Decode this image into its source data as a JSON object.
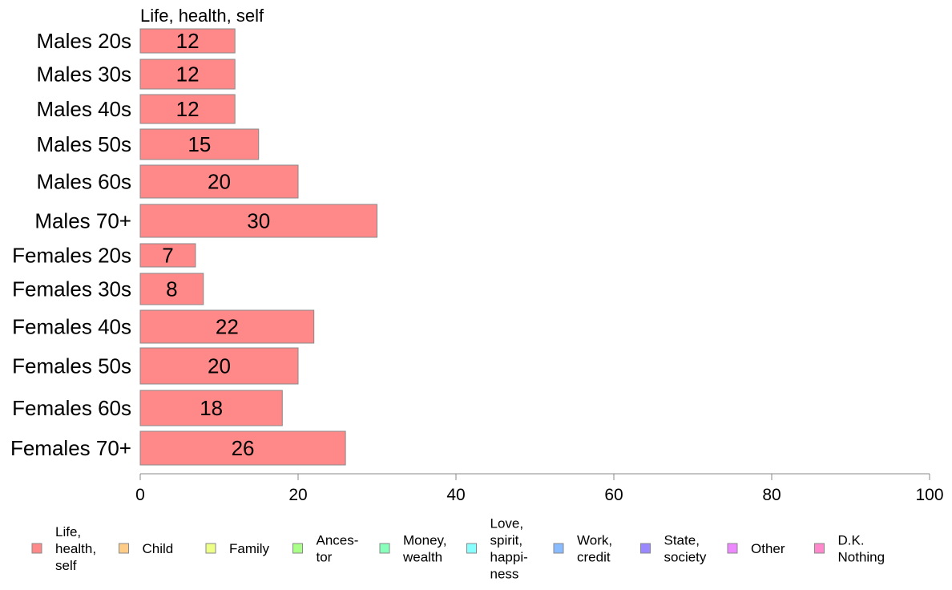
{
  "chart_data": {
    "type": "bar",
    "orientation": "horizontal",
    "title": "",
    "column_label": "Life, health, self",
    "categories": [
      "Males 20s",
      "Males 30s",
      "Males 40s",
      "Males 50s",
      "Males 60s",
      "Males 70+",
      "Females 20s",
      "Females 30s",
      "Females 40s",
      "Females 50s",
      "Females 60s",
      "Females 70+"
    ],
    "series": [
      {
        "name": "Life, health, self",
        "values": [
          12,
          12,
          12,
          15,
          20,
          30,
          7,
          8,
          22,
          20,
          18,
          26
        ],
        "value_labels": [
          "12",
          "12",
          "12",
          "15",
          "20",
          "30",
          "7",
          "8",
          "22",
          "20",
          "18",
          "26"
        ]
      }
    ],
    "xlim": [
      0,
      100
    ],
    "xticks": [
      0,
      20,
      40,
      60,
      80,
      100
    ],
    "xtick_labels": [
      "0",
      "20",
      "40",
      "60",
      "80",
      "100"
    ],
    "grid": false,
    "legend_placement": "bottom",
    "legend": [
      {
        "label": "Life,\nhealth,\nself",
        "color": "#ff8888"
      },
      {
        "label": "Child",
        "color": "#ffcc88"
      },
      {
        "label": "Family",
        "color": "#eeff88"
      },
      {
        "label": "Ances-\ntor",
        "color": "#aaff88"
      },
      {
        "label": "Money,\nwealth",
        "color": "#88ffbb"
      },
      {
        "label": "Love,\nspirit,\nhappi-\nness",
        "color": "#88ffff"
      },
      {
        "label": "Work,\ncredit",
        "color": "#88bbff"
      },
      {
        "label": "State,\nsociety",
        "color": "#9988ff"
      },
      {
        "label": "Other",
        "color": "#ee88ff"
      },
      {
        "label": "D.K.\nNothing",
        "color": "#ff88cc"
      }
    ],
    "colors": {
      "bar_fill": "#ff8888",
      "bar_stroke": "#888888",
      "axis": "#888888"
    }
  }
}
